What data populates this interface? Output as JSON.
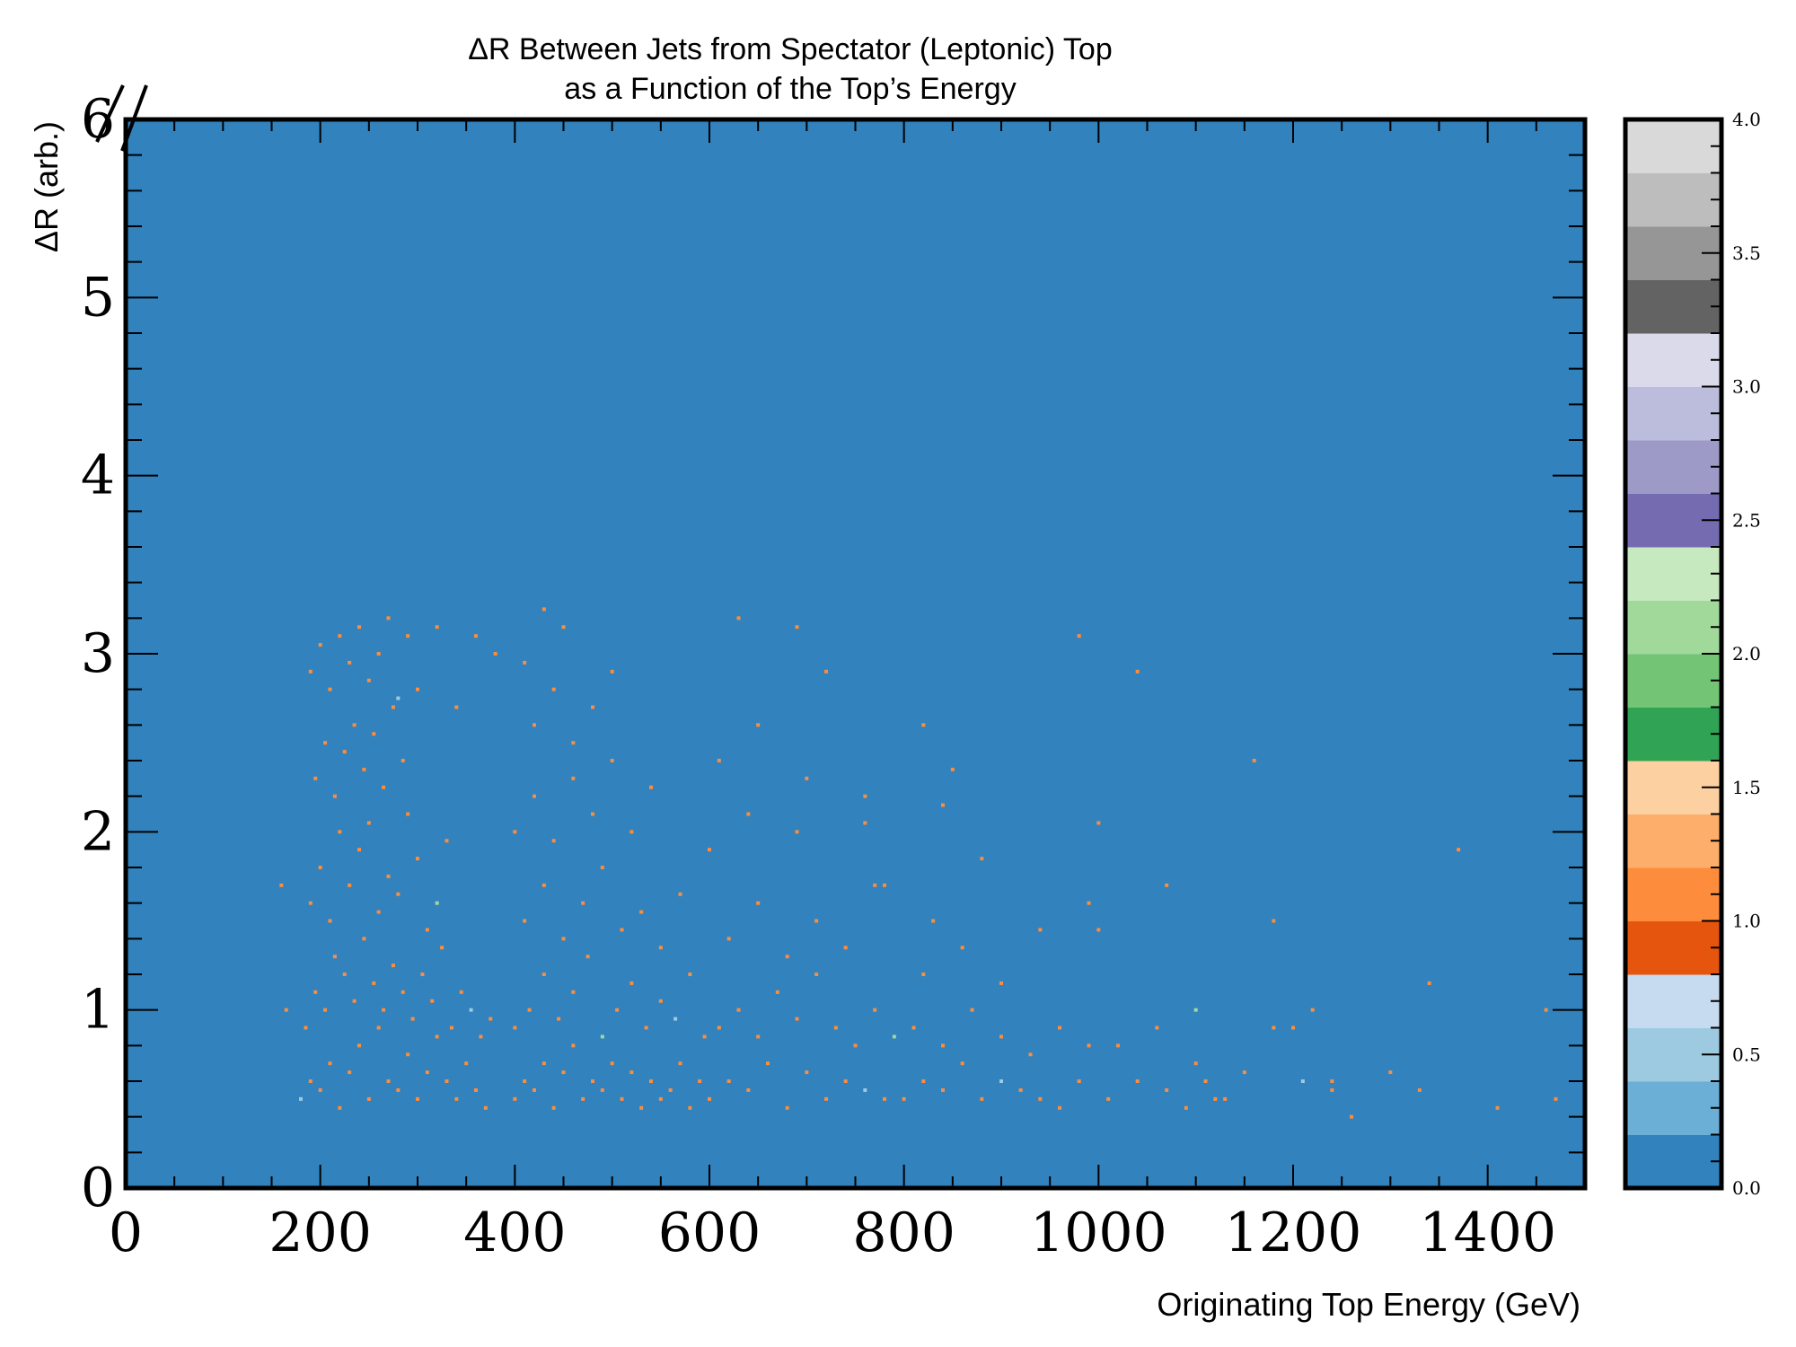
{
  "chart_data": {
    "type": "heatmap",
    "title_lines": [
      "ΔR Between Jets from Spectator (Leptonic) Top",
      "as a Function of the Top’s Energy"
    ],
    "xlabel": "Originating Top Energy (GeV)",
    "ylabel": "ΔR (arb.)",
    "xlim": [
      0,
      1500
    ],
    "ylim": [
      0,
      6
    ],
    "x_ticks": [
      0,
      200,
      400,
      600,
      800,
      1000,
      1200,
      1400
    ],
    "y_ticks": [
      0,
      1,
      2,
      3,
      4,
      5,
      6
    ],
    "background_color": "#3182bd",
    "point_color": "#fd8d3c",
    "point_color_secondary": "#9ecae1",
    "point_color_tertiary": "#a1d99b",
    "colorbar": {
      "range": [
        0.0,
        4.0
      ],
      "tick_values": [
        0.0,
        0.5,
        1.0,
        1.5,
        2.0,
        2.5,
        3.0,
        3.5,
        4.0
      ],
      "tick_labels": [
        "0.0",
        "0.5",
        "1.0",
        "1.5",
        "2.0",
        "2.5",
        "3.0",
        "3.5",
        "4.0"
      ],
      "colors": [
        "#3182bd",
        "#6baed6",
        "#9ecae1",
        "#c6dbef",
        "#e6550d",
        "#fd8d3c",
        "#fdae6b",
        "#fdd0a2",
        "#31a354",
        "#74c476",
        "#a1d99b",
        "#c7e9c0",
        "#756bb1",
        "#9e9ac8",
        "#bcbddc",
        "#dadaeb",
        "#636363",
        "#969696",
        "#bdbdbd",
        "#d9d9d9"
      ]
    },
    "series": [
      {
        "points": [
          [
            180,
            0.5
          ],
          [
            190,
            0.6
          ],
          [
            200,
            0.55
          ],
          [
            210,
            0.7
          ],
          [
            220,
            0.45
          ],
          [
            230,
            0.65
          ],
          [
            240,
            0.8
          ],
          [
            250,
            0.5
          ],
          [
            260,
            0.9
          ],
          [
            270,
            0.6
          ],
          [
            280,
            0.55
          ],
          [
            290,
            0.75
          ],
          [
            300,
            0.5
          ],
          [
            310,
            0.65
          ],
          [
            320,
            0.85
          ],
          [
            330,
            0.6
          ],
          [
            340,
            0.5
          ],
          [
            350,
            0.7
          ],
          [
            360,
            0.55
          ],
          [
            370,
            0.45
          ],
          [
            185,
            0.9
          ],
          [
            195,
            1.1
          ],
          [
            205,
            1.0
          ],
          [
            215,
            1.3
          ],
          [
            225,
            1.2
          ],
          [
            235,
            1.05
          ],
          [
            245,
            1.4
          ],
          [
            255,
            1.15
          ],
          [
            265,
            1.0
          ],
          [
            275,
            1.25
          ],
          [
            285,
            1.1
          ],
          [
            295,
            0.95
          ],
          [
            305,
            1.2
          ],
          [
            315,
            1.05
          ],
          [
            325,
            1.35
          ],
          [
            335,
            0.9
          ],
          [
            345,
            1.1
          ],
          [
            355,
            1.0
          ],
          [
            365,
            0.85
          ],
          [
            375,
            0.95
          ],
          [
            190,
            1.6
          ],
          [
            200,
            1.8
          ],
          [
            210,
            1.5
          ],
          [
            220,
            2.0
          ],
          [
            230,
            1.7
          ],
          [
            240,
            1.9
          ],
          [
            250,
            2.05
          ],
          [
            260,
            1.55
          ],
          [
            270,
            1.75
          ],
          [
            280,
            1.65
          ],
          [
            290,
            2.1
          ],
          [
            300,
            1.85
          ],
          [
            310,
            1.45
          ],
          [
            320,
            1.6
          ],
          [
            330,
            1.95
          ],
          [
            195,
            2.3
          ],
          [
            205,
            2.5
          ],
          [
            215,
            2.2
          ],
          [
            225,
            2.45
          ],
          [
            235,
            2.6
          ],
          [
            245,
            2.35
          ],
          [
            255,
            2.55
          ],
          [
            265,
            2.25
          ],
          [
            275,
            2.7
          ],
          [
            285,
            2.4
          ],
          [
            190,
            2.9
          ],
          [
            200,
            3.05
          ],
          [
            210,
            2.8
          ],
          [
            220,
            3.1
          ],
          [
            230,
            2.95
          ],
          [
            240,
            3.15
          ],
          [
            250,
            2.85
          ],
          [
            260,
            3.0
          ],
          [
            270,
            3.2
          ],
          [
            280,
            2.75
          ],
          [
            290,
            3.1
          ],
          [
            300,
            2.8
          ],
          [
            320,
            3.15
          ],
          [
            340,
            2.7
          ],
          [
            360,
            3.1
          ],
          [
            400,
            0.5
          ],
          [
            410,
            0.6
          ],
          [
            420,
            0.55
          ],
          [
            430,
            0.7
          ],
          [
            440,
            0.45
          ],
          [
            450,
            0.65
          ],
          [
            460,
            0.8
          ],
          [
            470,
            0.5
          ],
          [
            480,
            0.6
          ],
          [
            490,
            0.55
          ],
          [
            500,
            0.7
          ],
          [
            510,
            0.5
          ],
          [
            520,
            0.65
          ],
          [
            530,
            0.45
          ],
          [
            540,
            0.6
          ],
          [
            550,
            0.5
          ],
          [
            560,
            0.55
          ],
          [
            570,
            0.7
          ],
          [
            580,
            0.45
          ],
          [
            590,
            0.6
          ],
          [
            400,
            0.9
          ],
          [
            415,
            1.0
          ],
          [
            430,
            1.2
          ],
          [
            445,
            0.95
          ],
          [
            460,
            1.1
          ],
          [
            475,
            1.3
          ],
          [
            490,
            0.85
          ],
          [
            505,
            1.0
          ],
          [
            520,
            1.15
          ],
          [
            535,
            0.9
          ],
          [
            550,
            1.05
          ],
          [
            565,
            0.95
          ],
          [
            580,
            1.2
          ],
          [
            595,
            0.85
          ],
          [
            410,
            1.5
          ],
          [
            430,
            1.7
          ],
          [
            450,
            1.4
          ],
          [
            470,
            1.6
          ],
          [
            490,
            1.8
          ],
          [
            510,
            1.45
          ],
          [
            530,
            1.55
          ],
          [
            550,
            1.35
          ],
          [
            570,
            1.65
          ],
          [
            400,
            2.0
          ],
          [
            420,
            2.2
          ],
          [
            440,
            1.95
          ],
          [
            460,
            2.3
          ],
          [
            480,
            2.1
          ],
          [
            500,
            2.4
          ],
          [
            520,
            2.0
          ],
          [
            540,
            2.25
          ],
          [
            420,
            2.6
          ],
          [
            440,
            2.8
          ],
          [
            460,
            2.5
          ],
          [
            480,
            2.7
          ],
          [
            500,
            2.9
          ],
          [
            430,
            3.25
          ],
          [
            450,
            3.15
          ],
          [
            380,
            3.0
          ],
          [
            410,
            2.95
          ],
          [
            600,
            0.5
          ],
          [
            620,
            0.6
          ],
          [
            640,
            0.55
          ],
          [
            660,
            0.7
          ],
          [
            680,
            0.45
          ],
          [
            700,
            0.65
          ],
          [
            720,
            0.5
          ],
          [
            740,
            0.6
          ],
          [
            760,
            0.55
          ],
          [
            780,
            0.5
          ],
          [
            610,
            0.9
          ],
          [
            630,
            1.0
          ],
          [
            650,
            0.85
          ],
          [
            670,
            1.1
          ],
          [
            690,
            0.95
          ],
          [
            710,
            1.2
          ],
          [
            730,
            0.9
          ],
          [
            750,
            0.8
          ],
          [
            770,
            1.0
          ],
          [
            790,
            0.85
          ],
          [
            620,
            1.4
          ],
          [
            650,
            1.6
          ],
          [
            680,
            1.3
          ],
          [
            710,
            1.5
          ],
          [
            740,
            1.35
          ],
          [
            770,
            1.7
          ],
          [
            600,
            1.9
          ],
          [
            640,
            2.1
          ],
          [
            690,
            2.0
          ],
          [
            760,
            2.05
          ],
          [
            610,
            2.4
          ],
          [
            650,
            2.6
          ],
          [
            700,
            2.3
          ],
          [
            760,
            2.2
          ],
          [
            630,
            3.2
          ],
          [
            690,
            3.15
          ],
          [
            720,
            2.9
          ],
          [
            820,
            2.6
          ],
          [
            850,
            2.35
          ],
          [
            840,
            2.15
          ],
          [
            800,
            0.5
          ],
          [
            820,
            0.6
          ],
          [
            840,
            0.55
          ],
          [
            860,
            0.7
          ],
          [
            880,
            0.5
          ],
          [
            900,
            0.6
          ],
          [
            920,
            0.55
          ],
          [
            940,
            0.5
          ],
          [
            960,
            0.45
          ],
          [
            980,
            0.6
          ],
          [
            810,
            0.9
          ],
          [
            840,
            0.8
          ],
          [
            870,
            1.0
          ],
          [
            900,
            0.85
          ],
          [
            930,
            0.75
          ],
          [
            960,
            0.9
          ],
          [
            990,
            0.8
          ],
          [
            820,
            1.2
          ],
          [
            860,
            1.35
          ],
          [
            900,
            1.15
          ],
          [
            780,
            1.7
          ],
          [
            830,
            1.5
          ],
          [
            880,
            1.85
          ],
          [
            940,
            1.45
          ],
          [
            990,
            1.6
          ],
          [
            1010,
            0.5
          ],
          [
            1040,
            0.6
          ],
          [
            1070,
            0.55
          ],
          [
            1100,
            0.7
          ],
          [
            1130,
            0.5
          ],
          [
            1020,
            0.8
          ],
          [
            1060,
            0.9
          ],
          [
            1100,
            1.0
          ],
          [
            1150,
            0.65
          ],
          [
            1180,
            0.9
          ],
          [
            1000,
            1.45
          ],
          [
            1070,
            1.7
          ],
          [
            1000,
            2.05
          ],
          [
            1160,
            2.4
          ],
          [
            980,
            3.1
          ],
          [
            1040,
            2.9
          ],
          [
            1180,
            1.5
          ],
          [
            1210,
            0.6
          ],
          [
            1240,
            0.55
          ],
          [
            1260,
            0.4
          ],
          [
            1300,
            0.65
          ],
          [
            1330,
            0.55
          ],
          [
            1340,
            1.15
          ],
          [
            1370,
            1.9
          ],
          [
            1410,
            0.45
          ],
          [
            1470,
            0.5
          ],
          [
            1460,
            1.0
          ],
          [
            1200,
            0.9
          ],
          [
            1110,
            0.6
          ],
          [
            1220,
            1.0
          ],
          [
            1240,
            0.6
          ],
          [
            1120,
            0.5
          ],
          [
            1090,
            0.45
          ],
          [
            160,
            1.7
          ],
          [
            165,
            1.0
          ]
        ]
      }
    ]
  }
}
